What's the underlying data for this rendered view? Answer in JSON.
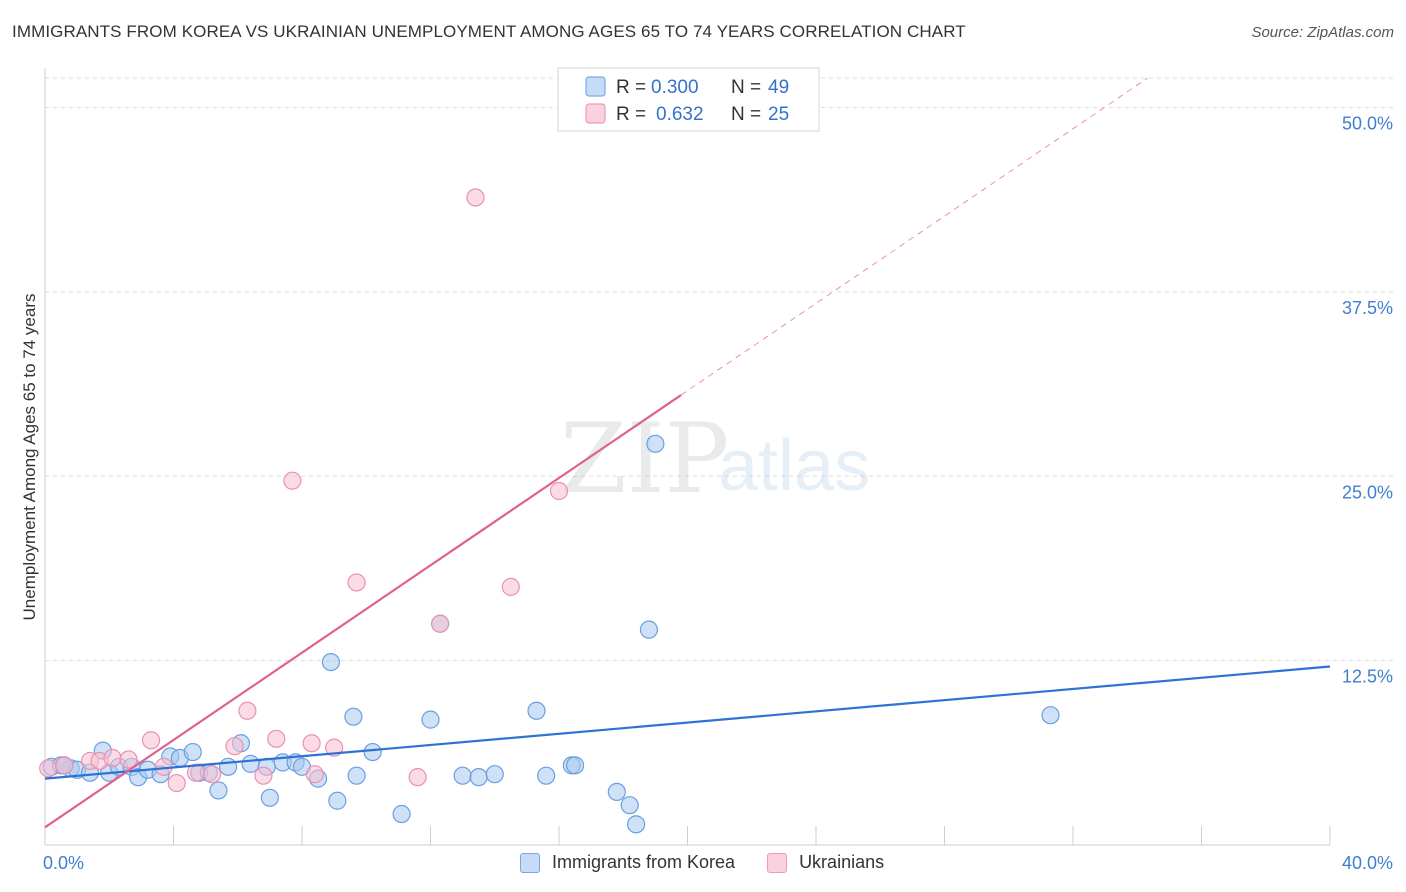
{
  "header": {
    "title": "IMMIGRANTS FROM KOREA VS UKRAINIAN UNEMPLOYMENT AMONG AGES 65 TO 74 YEARS CORRELATION CHART",
    "source": "Source: ZipAtlas.com"
  },
  "watermark": {
    "zip": "ZIP",
    "atlas": "atlas"
  },
  "chart_data": {
    "type": "scatter",
    "title": "IMMIGRANTS FROM KOREA VS UKRAINIAN UNEMPLOYMENT AMONG AGES 65 TO 74 YEARS CORRELATION CHART",
    "xlabel": "",
    "ylabel": "Unemployment Among Ages 65 to 74 years",
    "xlim": [
      0,
      40
    ],
    "ylim": [
      0,
      52
    ],
    "x_tick_labels": [
      "0.0%",
      "40.0%"
    ],
    "y_ticks": [
      12.5,
      25.0,
      37.5,
      50.0
    ],
    "y_tick_labels": [
      "12.5%",
      "25.0%",
      "37.5%",
      "50.0%"
    ],
    "grid": true,
    "legend_top": [
      {
        "r_label": "R =",
        "r_value": "0.300",
        "n_label": "N =",
        "n_value": "49"
      },
      {
        "r_label": "R =",
        "r_value": "0.632",
        "n_label": "N =",
        "n_value": "25"
      }
    ],
    "series": [
      {
        "name": "Immigrants from Korea",
        "color": "#a8c8f0",
        "stroke": "#6a9fe0",
        "line_color": "#2f72d6",
        "trend": {
          "x": [
            0,
            40
          ],
          "y": [
            4.5,
            12.1
          ],
          "dashed_extension": false
        },
        "points": [
          [
            0.2,
            5.3
          ],
          [
            0.5,
            5.4
          ],
          [
            0.8,
            5.2
          ],
          [
            1.0,
            5.1
          ],
          [
            1.4,
            4.9
          ],
          [
            1.8,
            6.4
          ],
          [
            2.0,
            4.9
          ],
          [
            2.3,
            5.3
          ],
          [
            2.7,
            5.3
          ],
          [
            2.9,
            4.6
          ],
          [
            3.2,
            5.1
          ],
          [
            3.6,
            4.8
          ],
          [
            3.9,
            6.0
          ],
          [
            4.2,
            5.9
          ],
          [
            4.6,
            6.3
          ],
          [
            4.8,
            4.9
          ],
          [
            5.1,
            4.9
          ],
          [
            5.4,
            3.7
          ],
          [
            5.7,
            5.3
          ],
          [
            6.1,
            6.9
          ],
          [
            6.4,
            5.5
          ],
          [
            6.9,
            5.3
          ],
          [
            7.0,
            3.2
          ],
          [
            7.4,
            5.6
          ],
          [
            7.8,
            5.6
          ],
          [
            8.0,
            5.3
          ],
          [
            8.5,
            4.5
          ],
          [
            8.9,
            12.4
          ],
          [
            9.1,
            3.0
          ],
          [
            9.6,
            8.7
          ],
          [
            9.7,
            4.7
          ],
          [
            10.2,
            6.3
          ],
          [
            11.1,
            2.1
          ],
          [
            12.0,
            8.5
          ],
          [
            12.3,
            15.0
          ],
          [
            13.0,
            4.7
          ],
          [
            13.5,
            4.6
          ],
          [
            14.0,
            4.8
          ],
          [
            15.3,
            9.1
          ],
          [
            15.6,
            4.7
          ],
          [
            16.4,
            5.4
          ],
          [
            16.5,
            5.4
          ],
          [
            17.8,
            3.6
          ],
          [
            18.2,
            2.7
          ],
          [
            18.4,
            1.4
          ],
          [
            18.8,
            14.6
          ],
          [
            19.0,
            27.2
          ],
          [
            31.3,
            8.8
          ],
          [
            0.6,
            5.4
          ]
        ]
      },
      {
        "name": "Ukrainians",
        "color": "#f8c0d2",
        "stroke": "#ec90ae",
        "line_color": "#e0628c",
        "trend": {
          "x": [
            0,
            40
          ],
          "y": [
            1.2,
            60.4
          ],
          "solid_until": 19.8,
          "dashed_extension": true
        },
        "points": [
          [
            0.1,
            5.2
          ],
          [
            0.6,
            5.4
          ],
          [
            1.4,
            5.7
          ],
          [
            1.7,
            5.7
          ],
          [
            2.1,
            5.9
          ],
          [
            2.6,
            5.8
          ],
          [
            3.3,
            7.1
          ],
          [
            3.7,
            5.3
          ],
          [
            4.1,
            4.2
          ],
          [
            4.7,
            4.9
          ],
          [
            5.2,
            4.8
          ],
          [
            5.9,
            6.7
          ],
          [
            6.3,
            9.1
          ],
          [
            6.8,
            4.7
          ],
          [
            7.2,
            7.2
          ],
          [
            7.7,
            24.7
          ],
          [
            8.3,
            6.9
          ],
          [
            8.4,
            4.8
          ],
          [
            9.0,
            6.6
          ],
          [
            9.7,
            17.8
          ],
          [
            11.6,
            4.6
          ],
          [
            12.3,
            15.0
          ],
          [
            13.4,
            43.9
          ],
          [
            14.5,
            17.5
          ],
          [
            16.0,
            24.0
          ]
        ]
      }
    ]
  }
}
